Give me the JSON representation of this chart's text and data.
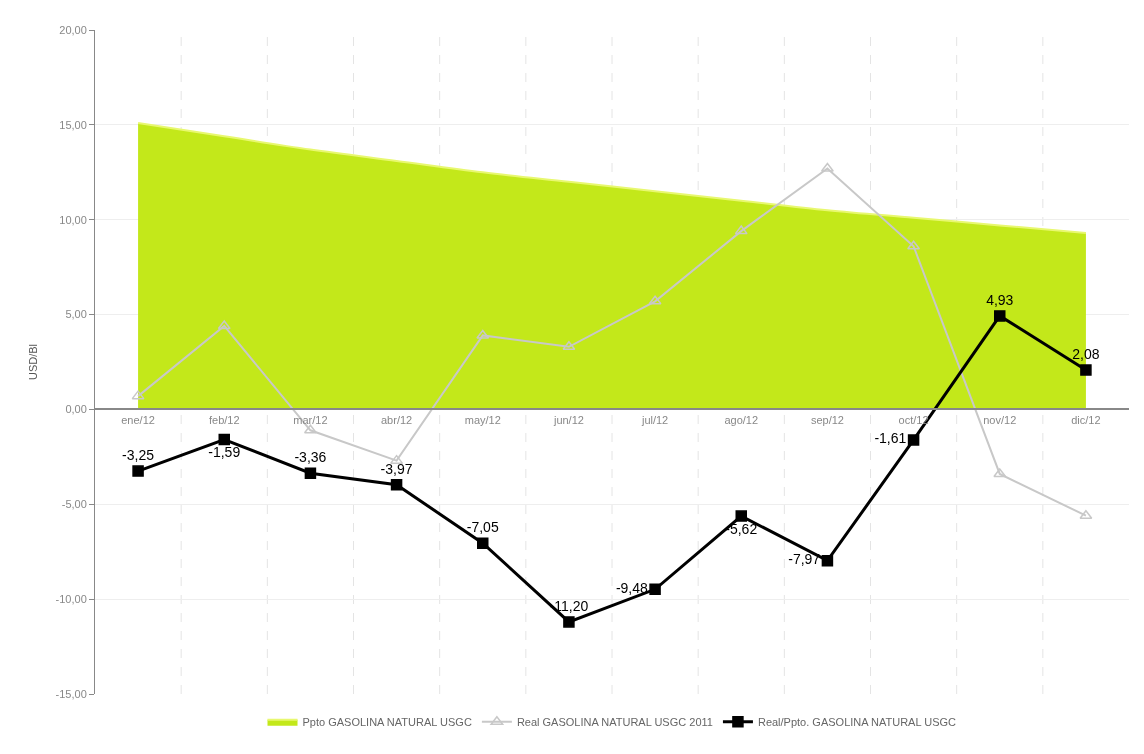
{
  "chart_data": {
    "type": "line",
    "ylabel": "USD/Bl",
    "categories": [
      "ene/12",
      "feb/12",
      "mar/12",
      "abr/12",
      "may/12",
      "jun/12",
      "jul/12",
      "ago/12",
      "sep/12",
      "oct/12",
      "nov/12",
      "dic/12"
    ],
    "series": [
      {
        "name": "Ppto GASOLINA NATURAL USGC",
        "type": "area",
        "color": "#c3e81a",
        "values": [
          15.1,
          14.4,
          13.7,
          13.1,
          12.5,
          12.0,
          11.5,
          11.0,
          10.5,
          10.1,
          9.7,
          9.3
        ]
      },
      {
        "name": "Real GASOLINA NATURAL USGC 2011",
        "color": "#c8c8c8",
        "marker": "triangle",
        "values": [
          0.7,
          4.4,
          -1.1,
          -2.7,
          3.9,
          3.3,
          5.7,
          9.4,
          12.7,
          8.6,
          -3.4,
          -5.6
        ]
      },
      {
        "name": "Real/Ppto. GASOLINA NATURAL USGC",
        "color": "#000000",
        "marker": "square",
        "values": [
          -3.25,
          -1.59,
          -3.36,
          -3.97,
          -7.05,
          -11.2,
          -9.48,
          -5.62,
          -7.97,
          -1.61,
          4.93,
          2.08
        ],
        "value_labels": [
          "-3,25",
          "-1,59",
          "-3,36",
          "-3,97",
          "-7,05",
          "-11,20",
          "-9,48",
          "-5,62",
          "-7,97",
          "-1,61",
          "4,93",
          "2,08"
        ]
      }
    ],
    "ylim": [
      -15,
      20
    ],
    "yticks": [
      {
        "value": -15,
        "label": "-15,00"
      },
      {
        "value": -10,
        "label": "-10,00"
      },
      {
        "value": -5,
        "label": "-5,00"
      },
      {
        "value": 0,
        "label": "0,00"
      },
      {
        "value": 5,
        "label": "5,00"
      },
      {
        "value": 10,
        "label": "10,00"
      },
      {
        "value": 15,
        "label": "15,00"
      },
      {
        "value": 20,
        "label": "20,00"
      }
    ],
    "grid": true,
    "legend": "bottom"
  }
}
